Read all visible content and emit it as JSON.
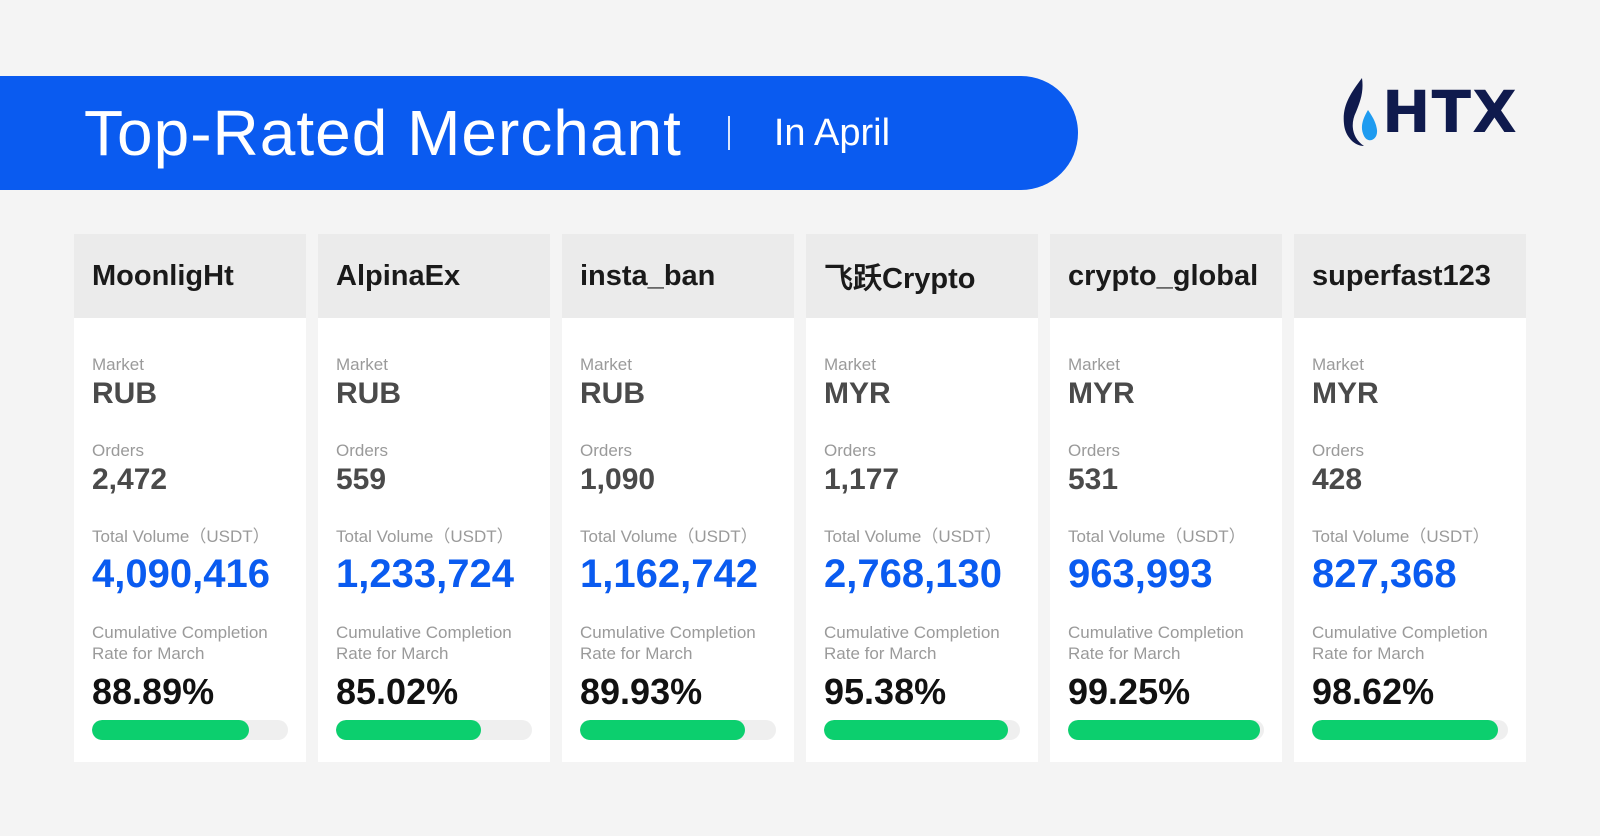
{
  "header": {
    "title": "Top-Rated Merchant",
    "subtitle": "In April"
  },
  "logo": {
    "text": "HTX",
    "icon": "flame-icon",
    "colors": {
      "dark": "#0f1a4d",
      "light": "#1e9bf0"
    }
  },
  "labels": {
    "market": "Market",
    "orders": "Orders",
    "volume": "Total Volume（USDT）",
    "rate": "Cumulative Completion Rate for March"
  },
  "colors": {
    "accent": "#0a5bf0",
    "progress": "#0ccf6e"
  },
  "merchants": [
    {
      "name": "MoonligHt",
      "market": "RUB",
      "orders": "2,472",
      "volume": "4,090,416",
      "rate": "88.89%",
      "rate_fraction": 0.8
    },
    {
      "name": "AlpinaEx",
      "market": "RUB",
      "orders": "559",
      "volume": "1,233,724",
      "rate": "85.02%",
      "rate_fraction": 0.74
    },
    {
      "name": "insta_ban",
      "market": "RUB",
      "orders": "1,090",
      "volume": "1,162,742",
      "rate": "89.93%",
      "rate_fraction": 0.84
    },
    {
      "name": "飞跃Crypto",
      "market": "MYR",
      "orders": "1,177",
      "volume": "2,768,130",
      "rate": "95.38%",
      "rate_fraction": 0.94
    },
    {
      "name": "crypto_global",
      "market": "MYR",
      "orders": "531",
      "volume": "963,993",
      "rate": "99.25%",
      "rate_fraction": 0.98
    },
    {
      "name": "superfast123",
      "market": "MYR",
      "orders": "428",
      "volume": "827,368",
      "rate": "98.62%",
      "rate_fraction": 0.95
    }
  ]
}
